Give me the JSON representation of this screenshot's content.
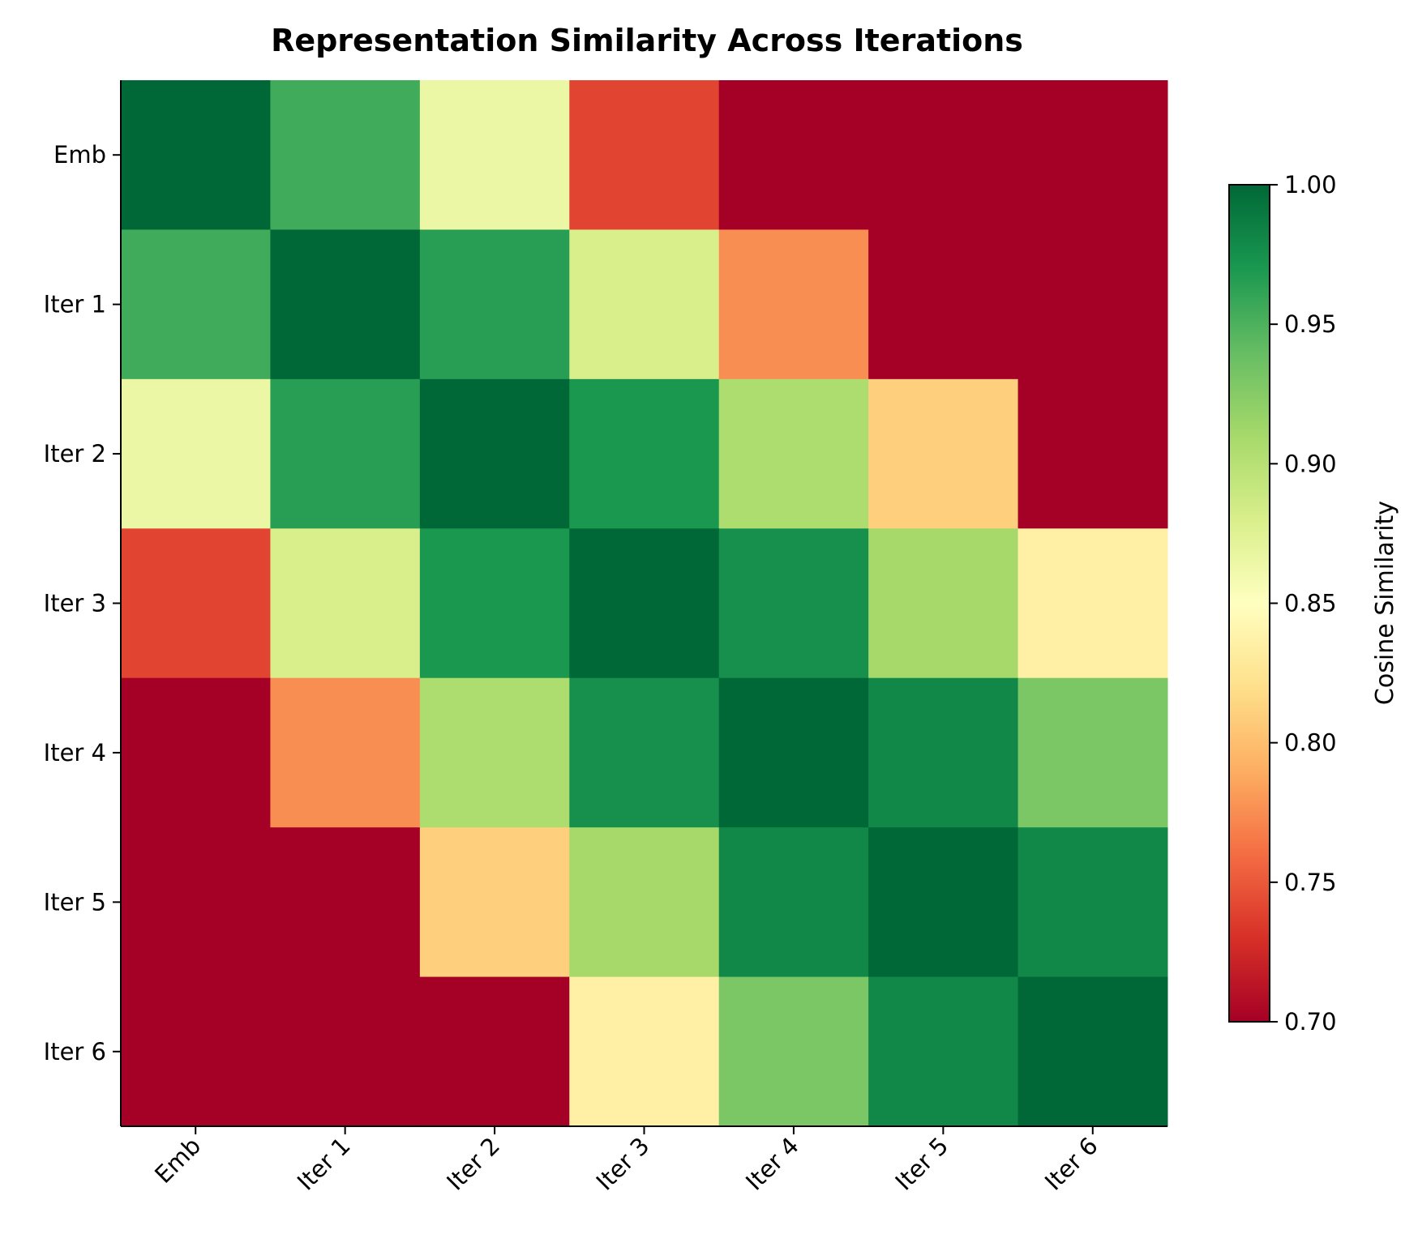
{
  "chart_data": {
    "type": "heatmap",
    "title": "Representation Similarity Across Iterations",
    "x_labels": [
      "Emb",
      "Iter 1",
      "Iter 2",
      "Iter 3",
      "Iter 4",
      "Iter 5",
      "Iter 6"
    ],
    "y_labels": [
      "Emb",
      "Iter 1",
      "Iter 2",
      "Iter 3",
      "Iter 4",
      "Iter 5",
      "Iter 6"
    ],
    "values": [
      [
        1.0,
        0.955,
        0.865,
        0.74,
        0.7,
        0.7,
        0.7
      ],
      [
        0.955,
        1.0,
        0.965,
        0.88,
        0.775,
        0.7,
        0.7
      ],
      [
        0.865,
        0.965,
        1.0,
        0.97,
        0.905,
        0.81,
        0.7
      ],
      [
        0.74,
        0.88,
        0.97,
        1.0,
        0.975,
        0.91,
        0.835
      ],
      [
        0.7,
        0.775,
        0.905,
        0.975,
        1.0,
        0.98,
        0.93
      ],
      [
        0.7,
        0.7,
        0.81,
        0.91,
        0.98,
        1.0,
        0.98
      ],
      [
        0.7,
        0.7,
        0.7,
        0.835,
        0.93,
        0.98,
        1.0
      ]
    ],
    "colormap": "RdYlGn",
    "vmin": 0.7,
    "vmax": 1.0,
    "colorbar": {
      "label": "Cosine Similarity",
      "ticks": [
        "0.70",
        "0.75",
        "0.80",
        "0.85",
        "0.90",
        "0.95",
        "1.00"
      ]
    },
    "grid": false
  }
}
